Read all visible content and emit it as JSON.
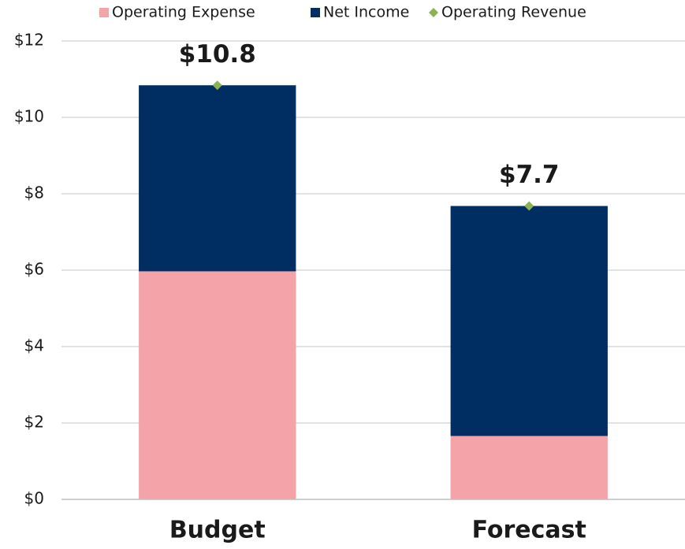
{
  "chart_data": {
    "type": "bar",
    "stacked": true,
    "categories": [
      "Budget",
      "Forecast"
    ],
    "series": [
      {
        "name": "Operating Expense",
        "color": "#f4a3a8",
        "values": [
          5.97,
          1.66
        ]
      },
      {
        "name": "Net Income",
        "color": "#002d62",
        "values": [
          4.87,
          6.02
        ]
      },
      {
        "name": "Operating Revenue",
        "color": "#8db255",
        "type": "scatter",
        "values": [
          10.84,
          7.68
        ],
        "value_labels": [
          "$10.8",
          "$7.7"
        ]
      }
    ],
    "ylim": [
      0,
      12
    ],
    "yticks": [
      {
        "value": 0,
        "label": "$0"
      },
      {
        "value": 2,
        "label": "$2"
      },
      {
        "value": 4,
        "label": "$4"
      },
      {
        "value": 6,
        "label": "$6"
      },
      {
        "value": 8,
        "label": "$8"
      },
      {
        "value": 10,
        "label": "$10"
      },
      {
        "value": 12,
        "label": "$12"
      }
    ],
    "grid": true,
    "legend": "top"
  }
}
